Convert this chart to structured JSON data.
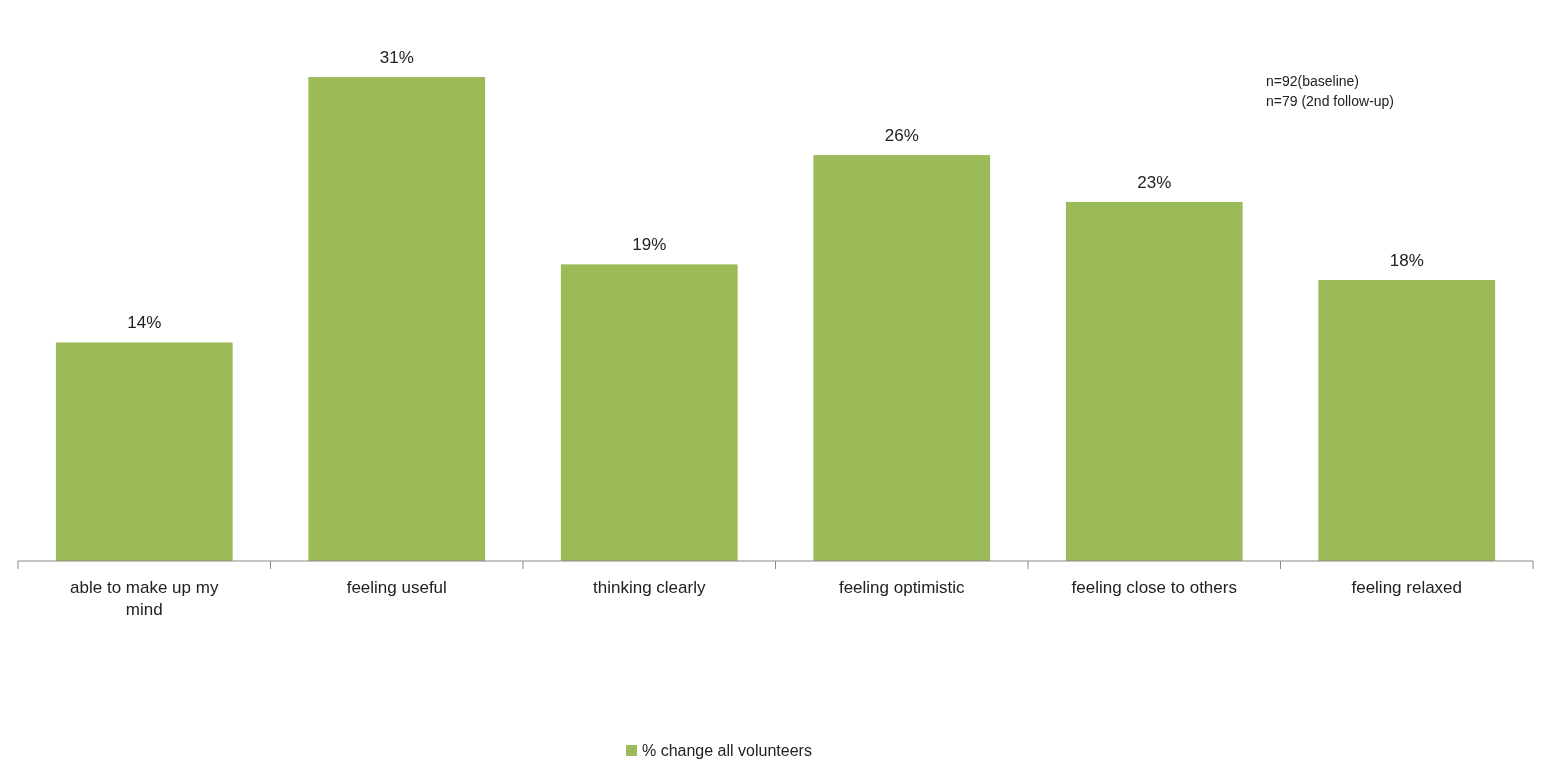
{
  "chart_data": {
    "type": "bar",
    "categories": [
      "able to make up my mind",
      "feeling useful",
      "thinking clearly",
      "feeling optimistic",
      "feeling close to others",
      "feeling relaxed"
    ],
    "series": [
      {
        "name": "% change all volunteers",
        "color": "#9bbb59",
        "values": [
          14,
          31,
          19,
          26,
          23,
          18
        ],
        "value_labels": [
          "14%",
          "31%",
          "19%",
          "26%",
          "23%",
          "18%"
        ]
      }
    ],
    "annotations": [
      "n=92(baseline)",
      "n=79 (2nd follow-up)"
    ],
    "legend": "bottom"
  }
}
